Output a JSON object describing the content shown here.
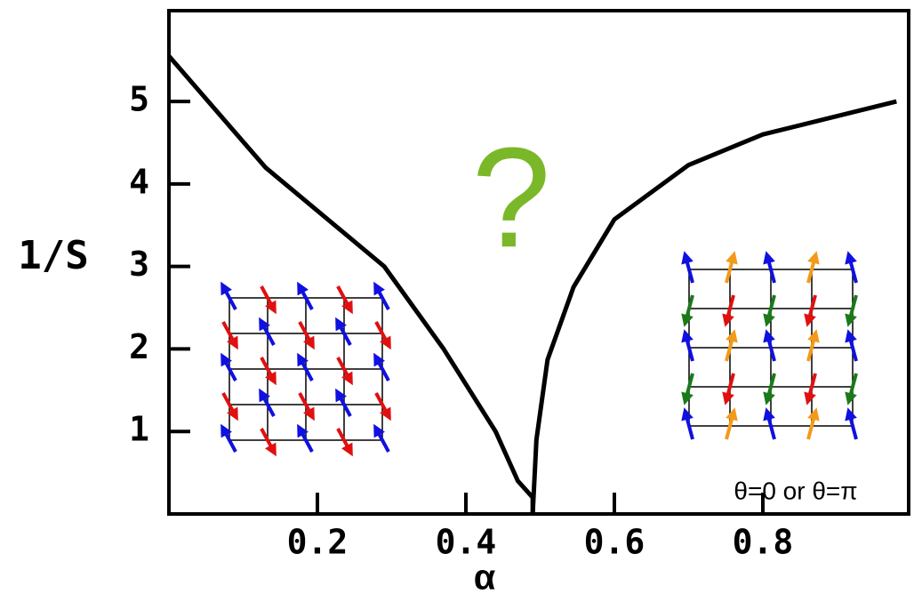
{
  "chart_data": {
    "type": "line",
    "xlabel": "α",
    "ylabel": "1/S",
    "xlim": [
      0,
      1
    ],
    "ylim": [
      0,
      6.1
    ],
    "xticks": [
      0.2,
      0.4,
      0.6,
      0.8
    ],
    "yticks": [
      1,
      2,
      3,
      4,
      5
    ],
    "series": [
      {
        "color": "#000000",
        "x": [
          0,
          0.13,
          0.29,
          0.37,
          0.44,
          0.47,
          0.49,
          0.49
        ],
        "values": [
          5.55,
          4.2,
          3.0,
          2.0,
          1.0,
          0.4,
          0.2,
          0
        ]
      },
      {
        "color": "#000000",
        "x": [
          0.49,
          0.495,
          0.51,
          0.545,
          0.6,
          0.7,
          0.8,
          0.98
        ],
        "values": [
          0,
          0.9,
          1.87,
          2.75,
          3.57,
          4.23,
          4.6,
          5.0
        ]
      }
    ],
    "annotations": [
      "?",
      "θ=0 or θ=π"
    ]
  }
}
